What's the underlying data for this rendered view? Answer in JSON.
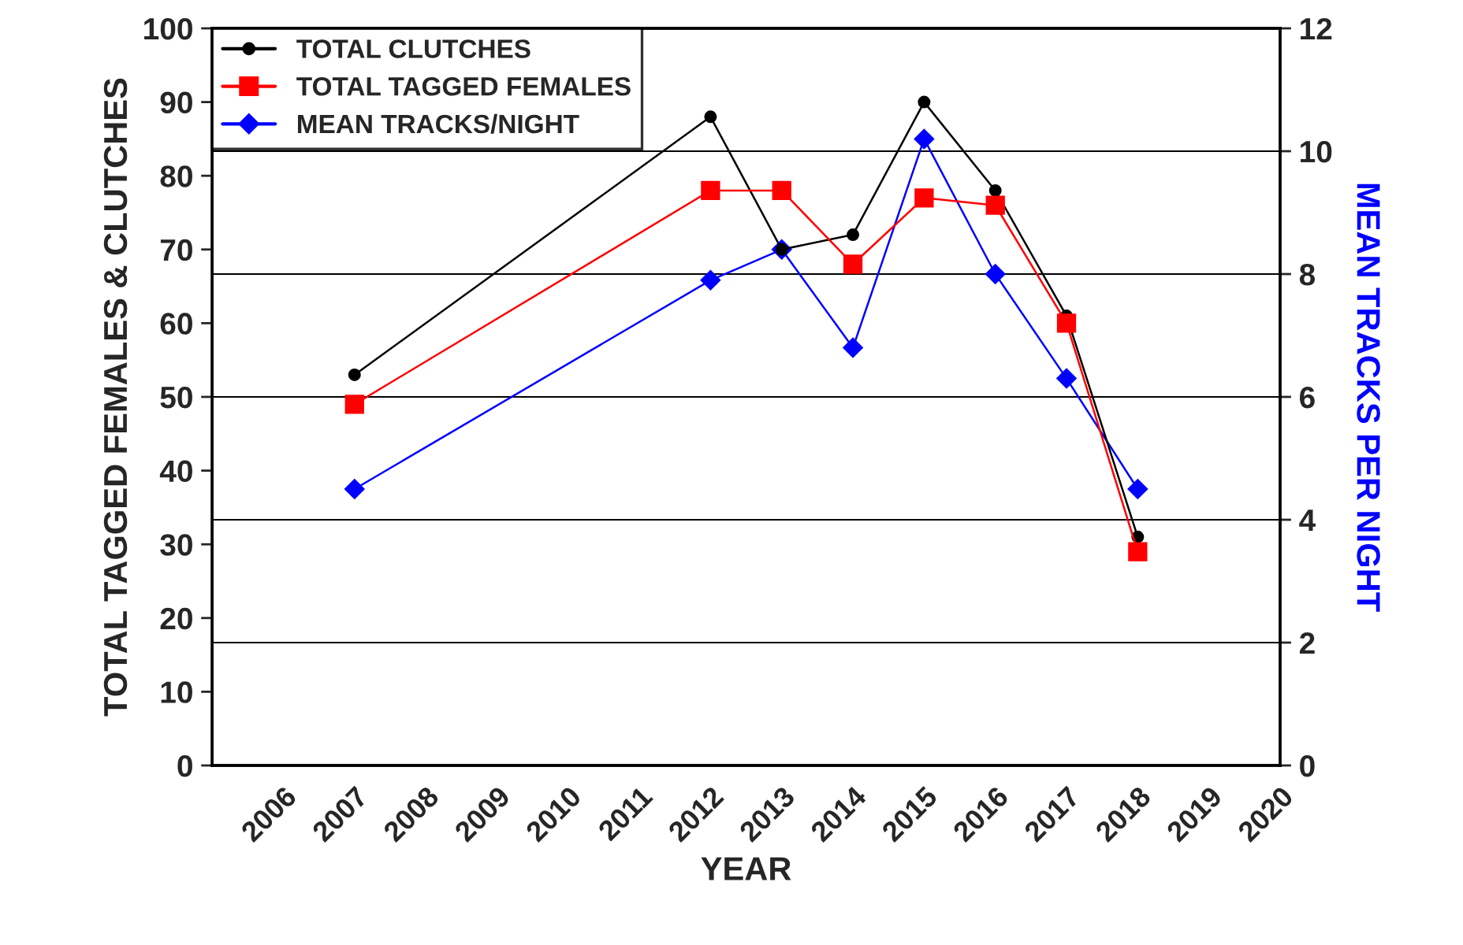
{
  "chart_data": {
    "type": "line",
    "xlabel": "YEAR",
    "ylabel": "TOTAL TAGGED FEMALES & CLUTCHES",
    "y2label": "MEAN TRACKS PER NIGHT",
    "x": [
      2007,
      2012,
      2013,
      2014,
      2015,
      2016,
      2017,
      2018
    ],
    "series": [
      {
        "name": "TOTAL CLUTCHES",
        "color": "#000000",
        "marker": "circle",
        "values": [
          53,
          88,
          70,
          72,
          90,
          78,
          61,
          31
        ]
      },
      {
        "name": "TOTAL TAGGED FEMALES",
        "color": "#ff0000",
        "marker": "square",
        "values": [
          49,
          78,
          78,
          68,
          77,
          76,
          60,
          29
        ]
      },
      {
        "name": "MEAN TRACKS/NIGHT",
        "color": "#0000ff",
        "marker": "diamond",
        "axis": "y2",
        "values": [
          4.5,
          7.9,
          8.4,
          6.8,
          10.2,
          8.0,
          6.3,
          4.5
        ]
      }
    ],
    "xlim": [
      2005,
      2020
    ],
    "xticks": [
      2006,
      2007,
      2008,
      2009,
      2010,
      2011,
      2012,
      2013,
      2014,
      2015,
      2016,
      2017,
      2018,
      2019,
      2020
    ],
    "ylim": [
      0,
      100
    ],
    "yticks": [
      0,
      10,
      20,
      30,
      40,
      50,
      60,
      70,
      80,
      90,
      100
    ],
    "y2lim": [
      0,
      12
    ],
    "y2ticks": [
      0,
      2,
      4,
      6,
      8,
      10,
      12
    ],
    "grid": "y2",
    "legend": "top left"
  }
}
